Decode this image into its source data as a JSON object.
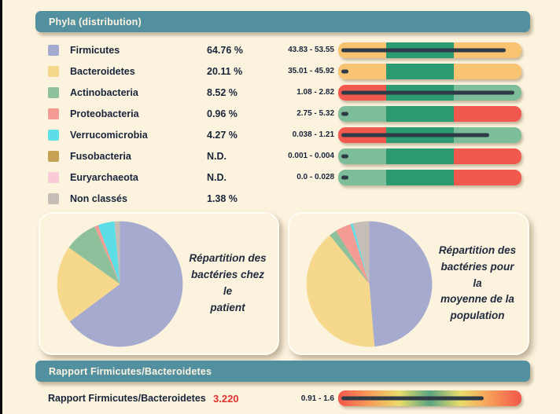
{
  "colors": {
    "background": "#FCF3DF",
    "header_teal": "#53909F",
    "text_dark": "#18243A",
    "needle_dark": "#2E3A46",
    "alert_red": "#E0322C"
  },
  "phyla_section": {
    "title": "Phyla (distribution)",
    "rows": [
      {
        "name": "Firmicutes",
        "color": "#A5AACE",
        "value": "64.76 %",
        "range": "43.83 - 53.55",
        "gauge": {
          "segments": [
            {
              "color": "#F8C471",
              "pct": 26.3
            },
            {
              "color": "#2D9B72",
              "pct": 36.7
            },
            {
              "color": "#F8C471",
              "pct": 37
            }
          ],
          "needle_pct": 93
        }
      },
      {
        "name": "Bacteroidetes",
        "color": "#F6D88D",
        "value": "20.11 %",
        "range": "35.01 - 45.92",
        "gauge": {
          "segments": [
            {
              "color": "#F8C471",
              "pct": 26.3
            },
            {
              "color": "#2D9B72",
              "pct": 36.7
            },
            {
              "color": "#F8C471",
              "pct": 37
            }
          ],
          "needle_pct": 6
        }
      },
      {
        "name": "Actinobacteria",
        "color": "#8EC19B",
        "value": "8.52 %",
        "range": "1.08 - 2.82",
        "gauge": {
          "segments": [
            {
              "color": "#F2594E",
              "pct": 26.3
            },
            {
              "color": "#2D9B72",
              "pct": 36.7
            },
            {
              "color": "#7DBD99",
              "pct": 37
            }
          ],
          "needle_pct": 98
        }
      },
      {
        "name": "Proteobacteria",
        "color": "#F49B94",
        "value": "0.96 %",
        "range": "2.75 - 5.32",
        "gauge": {
          "segments": [
            {
              "color": "#7DBD99",
              "pct": 26.3
            },
            {
              "color": "#2D9B72",
              "pct": 36.7
            },
            {
              "color": "#F2594E",
              "pct": 37
            }
          ],
          "needle_pct": 6
        }
      },
      {
        "name": "Verrucomicrobia",
        "color": "#5BDEE6",
        "value": "4.27 %",
        "range": "0.038 - 1.21",
        "gauge": {
          "segments": [
            {
              "color": "#F2594E",
              "pct": 26.3
            },
            {
              "color": "#2D9B72",
              "pct": 36.7
            },
            {
              "color": "#7DBD99",
              "pct": 37
            }
          ],
          "needle_pct": 84
        }
      },
      {
        "name": "Fusobacteria",
        "color": "#C7A155",
        "value": "N.D.",
        "range": "0.001 - 0.004",
        "gauge": {
          "segments": [
            {
              "color": "#7DBD99",
              "pct": 26.3
            },
            {
              "color": "#2D9B72",
              "pct": 36.7
            },
            {
              "color": "#F2594E",
              "pct": 37
            }
          ],
          "needle_pct": 4
        }
      },
      {
        "name": "Euryarchaeota",
        "color": "#F8CBD7",
        "value": "N.D.",
        "range": "0.0 - 0.028",
        "gauge": {
          "segments": [
            {
              "color": "#7DBD99",
              "pct": 26.3
            },
            {
              "color": "#2D9B72",
              "pct": 36.7
            },
            {
              "color": "#F2594E",
              "pct": 37
            }
          ],
          "needle_pct": 4
        }
      },
      {
        "name": "Non classés",
        "color": "#C4BEB7",
        "value": "1.38 %",
        "range": ""
      }
    ]
  },
  "pie_cards": [
    {
      "caption_lines": [
        "Répartition des",
        "bactéries chez le",
        "patient",
        ""
      ]
    },
    {
      "caption_lines": [
        "Répartition des",
        "bactéries pour la",
        "moyenne de la",
        "population"
      ]
    }
  ],
  "ratio_section": {
    "title": "Rapport Firmicutes/Bacteroidetes",
    "label": "Rapport Firmicutes/Bacteroidetes",
    "value": "3.220",
    "range": "0.91 - 1.6",
    "gauge": {
      "gradient_stops": [
        "#F2564B",
        "#F79B58",
        "#E9DC6A",
        "#5BA483",
        "#E9DC6A",
        "#F79B58",
        "#F2564B"
      ],
      "needle_pct": 81
    }
  },
  "chart_data": [
    {
      "type": "pie",
      "title": "Répartition des bactéries chez le patient",
      "labels": [
        "Firmicutes",
        "Bacteroidetes",
        "Actinobacteria",
        "Proteobacteria",
        "Verrucomicrobia",
        "Non classés"
      ],
      "values": [
        64.76,
        20.11,
        8.52,
        0.96,
        4.27,
        1.38
      ],
      "colors": [
        "#A5AACE",
        "#F6D88D",
        "#8EC19B",
        "#F49B94",
        "#5BDEE6",
        "#C4BEB7"
      ],
      "start_angle_deg": 0,
      "direction": "clockwise",
      "legend": "none"
    },
    {
      "type": "pie",
      "title": "Répartition des bactéries pour la moyenne de la population",
      "labels": [
        "Firmicutes",
        "Bacteroidetes",
        "Actinobacteria",
        "Proteobacteria",
        "Verrucomicrobia",
        "Non classés"
      ],
      "values": [
        48.69,
        40.47,
        1.95,
        4.04,
        0.62,
        4.23
      ],
      "colors": [
        "#A5AACE",
        "#F6D88D",
        "#8EC19B",
        "#F49B94",
        "#5BDEE6",
        "#C4BEB7"
      ],
      "start_angle_deg": 0,
      "direction": "clockwise",
      "legend": "none"
    }
  ]
}
